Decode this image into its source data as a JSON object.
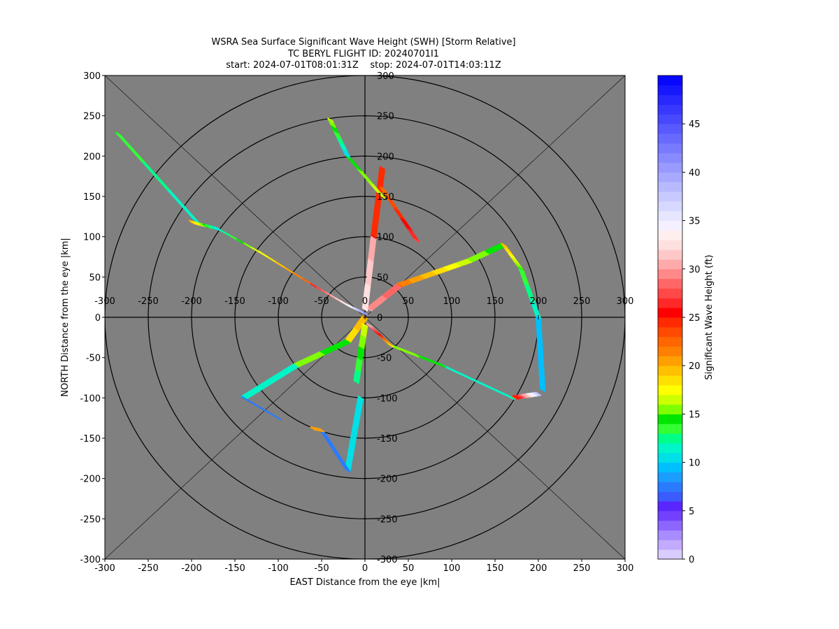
{
  "chart_data": {
    "type": "scatter",
    "title_lines": [
      "WSRA Sea Surface Significant Wave Height (SWH) [Storm Relative]",
      "TC BERYL FLIGHT ID: 20240701I1",
      "start: 2024-07-01T08:01:31Z    stop: 2024-07-01T14:03:11Z"
    ],
    "xlabel": "EAST Distance from the eye |km|",
    "ylabel": "NORTH Distance from the eye |km|",
    "xlim": [
      -300,
      300
    ],
    "ylim": [
      -300,
      300
    ],
    "x_ticks": [
      -300,
      -250,
      -200,
      -150,
      -100,
      -50,
      0,
      50,
      100,
      150,
      200,
      250,
      300
    ],
    "y_ticks": [
      -300,
      -250,
      -200,
      -150,
      -100,
      -50,
      0,
      50,
      100,
      150,
      200,
      250,
      300
    ],
    "range_rings_km": [
      50,
      100,
      150,
      200,
      250,
      300
    ],
    "diagonal_lines": true,
    "background_color": "#808080",
    "colorbar": {
      "label": "Significant Wave Height (ft)",
      "min": 0,
      "max": 50,
      "ticks": [
        0,
        5,
        10,
        15,
        20,
        25,
        30,
        35,
        40,
        45
      ],
      "colors": [
        "#d9ccff",
        "#c2aaff",
        "#a68cff",
        "#8c66ff",
        "#7340ff",
        "#5a26ff",
        "#3a5cff",
        "#2b7bff",
        "#1a9dff",
        "#00bfff",
        "#00e0e6",
        "#00f5c8",
        "#00ff88",
        "#33ff33",
        "#00e600",
        "#80ff00",
        "#ccff00",
        "#ffff00",
        "#ffe000",
        "#ffc000",
        "#ffa000",
        "#ff8000",
        "#ff6600",
        "#ff4a00",
        "#ff2a00",
        "#ff0000",
        "#ff2828",
        "#ff4848",
        "#ff6666",
        "#ff8888",
        "#ffaaaa",
        "#ffc8c8",
        "#ffe0e0",
        "#ffeeee",
        "#f4f0ff",
        "#e6e6ff",
        "#d6d8ff",
        "#c8caff",
        "#b8baff",
        "#a8aaff",
        "#989aff",
        "#888aff",
        "#787aff",
        "#686aff",
        "#585aff",
        "#4848ff",
        "#3838ff",
        "#2828ff",
        "#1818ff",
        "#0808ff"
      ]
    },
    "series": [
      {
        "segments": [
          {
            "from": [
              -285,
              228
            ],
            "to": [
              -195,
              120
            ],
            "swh": [
              14,
              11
            ]
          },
          {
            "from": [
              -200,
              118
            ],
            "to": [
              -170,
              110
            ],
            "swh": [
              20,
              10
            ]
          },
          {
            "from": [
              -170,
              110
            ],
            "to": [
              -120,
              80
            ],
            "swh": [
              11,
              17
            ]
          },
          {
            "from": [
              -120,
              80
            ],
            "to": [
              -60,
              40
            ],
            "swh": [
              17,
              23
            ]
          },
          {
            "from": [
              -60,
              40
            ],
            "to": [
              -20,
              15
            ],
            "swh": [
              26,
              33
            ]
          },
          {
            "from": [
              -20,
              15
            ],
            "to": [
              0,
              5
            ],
            "swh": [
              33,
              40
            ]
          }
        ]
      },
      {
        "segments": [
          {
            "from": [
              5,
              10
            ],
            "to": [
              40,
              40
            ],
            "swh": [
              30,
              28
            ]
          },
          {
            "from": [
              40,
              40
            ],
            "to": [
              120,
              70
            ],
            "swh": [
              22,
              16
            ]
          },
          {
            "from": [
              120,
              70
            ],
            "to": [
              160,
              90
            ],
            "swh": [
              16,
              14
            ]
          },
          {
            "from": [
              160,
              90
            ],
            "to": [
              180,
              60
            ],
            "swh": [
              20,
              15
            ]
          },
          {
            "from": [
              180,
              60
            ],
            "to": [
              200,
              0
            ],
            "swh": [
              14,
              11
            ]
          },
          {
            "from": [
              200,
              0
            ],
            "to": [
              205,
              -90
            ],
            "swh": [
              10,
              9
            ]
          }
        ]
      },
      {
        "segments": [
          {
            "from": [
              200,
              -95
            ],
            "to": [
              170,
              -100
            ],
            "swh": [
              38,
              23
            ]
          },
          {
            "from": [
              170,
              -100
            ],
            "to": [
              90,
              -60
            ],
            "swh": [
              11,
              12
            ]
          },
          {
            "from": [
              90,
              -60
            ],
            "to": [
              30,
              -35
            ],
            "swh": [
              14,
              16
            ]
          },
          {
            "from": [
              30,
              -35
            ],
            "to": [
              5,
              -10
            ],
            "swh": [
              18,
              30
            ]
          }
        ]
      },
      {
        "segments": [
          {
            "from": [
              0,
              0
            ],
            "to": [
              -20,
              -30
            ],
            "swh": [
              20,
              18
            ]
          },
          {
            "from": [
              -20,
              -30
            ],
            "to": [
              -80,
              -60
            ],
            "swh": [
              14,
              16
            ]
          },
          {
            "from": [
              -80,
              -60
            ],
            "to": [
              -140,
              -100
            ],
            "swh": [
              11,
              12
            ]
          },
          {
            "from": [
              -140,
              -100
            ],
            "to": [
              -100,
              -125
            ],
            "swh": [
              8,
              7
            ]
          }
        ]
      },
      {
        "segments": [
          {
            "from": [
              0,
              -10
            ],
            "to": [
              -10,
              -80
            ],
            "swh": [
              17,
              12
            ]
          },
          {
            "from": [
              -5,
              -100
            ],
            "to": [
              -20,
              -190
            ],
            "swh": [
              11,
              10
            ]
          },
          {
            "from": [
              -20,
              -190
            ],
            "to": [
              -50,
              -140
            ],
            "swh": [
              7,
              8
            ]
          },
          {
            "from": [
              -50,
              -140
            ],
            "to": [
              -60,
              -138
            ],
            "swh": [
              20,
              20
            ]
          }
        ]
      },
      {
        "segments": [
          {
            "from": [
              0,
              10
            ],
            "to": [
              10,
              100
            ],
            "swh": [
              33,
              30
            ]
          },
          {
            "from": [
              10,
              100
            ],
            "to": [
              20,
              185
            ],
            "swh": [
              25,
              24
            ]
          },
          {
            "from": [
              20,
              160
            ],
            "to": [
              60,
              95
            ],
            "swh": [
              22,
              27
            ]
          },
          {
            "from": [
              20,
              150
            ],
            "to": [
              -20,
              200
            ],
            "swh": [
              17,
              14
            ]
          },
          {
            "from": [
              -20,
              200
            ],
            "to": [
              -40,
              245
            ],
            "swh": [
              10,
              16
            ]
          }
        ]
      }
    ]
  }
}
